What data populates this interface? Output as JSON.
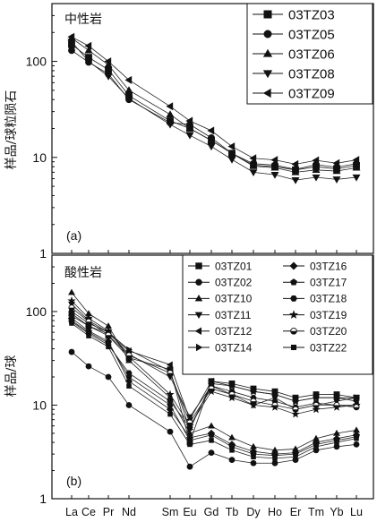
{
  "chart_data": [
    {
      "type": "line",
      "panel_label": "(a)",
      "annotation": "中性岩",
      "ylabel": "样品/球粒陨石",
      "yscale": "log",
      "ylim": [
        1,
        400
      ],
      "y_ticks": [
        "1",
        "10",
        "100"
      ],
      "legend_position": "top-right",
      "categories": [
        "La",
        "Ce",
        "Pr",
        "Nd",
        "Sm",
        "Eu",
        "Gd",
        "Tb",
        "Dy",
        "Ho",
        "Er",
        "Tm",
        "Yb",
        "Lu"
      ],
      "series": [
        {
          "name": "03TZ03",
          "marker": "square",
          "values": [
            150,
            110,
            82,
            44,
            24,
            20,
            15,
            11,
            8.3,
            8.0,
            7.4,
            8.0,
            7.6,
            8.2
          ]
        },
        {
          "name": "03TZ05",
          "marker": "circle",
          "values": [
            130,
            98,
            74,
            40,
            23,
            22,
            16,
            11,
            8.6,
            8.3,
            7.5,
            8.4,
            7.9,
            8.6
          ]
        },
        {
          "name": "03TZ06",
          "marker": "triangle-up",
          "values": [
            175,
            130,
            92,
            50,
            28,
            20,
            15,
            11,
            8.1,
            7.8,
            7.0,
            7.4,
            7.2,
            7.8
          ]
        },
        {
          "name": "03TZ08",
          "marker": "triangle-down",
          "values": [
            160,
            100,
            70,
            41,
            22,
            17,
            13,
            9.5,
            7.0,
            6.6,
            5.8,
            6.2,
            5.9,
            6.2
          ]
        },
        {
          "name": "03TZ09",
          "marker": "triangle-left",
          "values": [
            180,
            145,
            100,
            64,
            34,
            24,
            19,
            13,
            9.8,
            9.4,
            8.5,
            9.3,
            8.7,
            9.4
          ]
        }
      ]
    },
    {
      "type": "line",
      "panel_label": "(b)",
      "annotation": "酸性岩",
      "ylabel": "样品/球",
      "yscale": "log",
      "ylim": [
        1,
        400
      ],
      "y_ticks": [
        "1",
        "10",
        "100"
      ],
      "legend_position": "top-right",
      "categories": [
        "La",
        "Ce",
        "Pr",
        "Nd",
        "Sm",
        "Eu",
        "Gd",
        "Tb",
        "Dy",
        "Ho",
        "Er",
        "Tm",
        "Yb",
        "Lu"
      ],
      "series": [
        {
          "name": "03TZ01",
          "marker": "square",
          "values": [
            95,
            70,
            55,
            32,
            24,
            4.0,
            18,
            17,
            15,
            14,
            12,
            13,
            13,
            12
          ]
        },
        {
          "name": "03TZ02",
          "marker": "circle",
          "values": [
            37,
            26,
            20,
            10,
            5.2,
            2.2,
            3.1,
            2.6,
            2.4,
            2.4,
            2.6,
            3.3,
            3.6,
            3.8
          ]
        },
        {
          "name": "03TZ10",
          "marker": "triangle-up",
          "values": [
            160,
            95,
            70,
            30,
            12,
            5.0,
            6.0,
            4.5,
            3.6,
            3.3,
            3.4,
            4.4,
            5.0,
            5.4
          ]
        },
        {
          "name": "03TZ11",
          "marker": "triangle-down",
          "values": [
            120,
            80,
            60,
            35,
            20,
            7.5,
            16,
            13,
            10,
            12,
            9.0,
            10,
            11,
            12
          ]
        },
        {
          "name": "03TZ12",
          "marker": "triangle-left",
          "values": [
            90,
            70,
            58,
            38,
            27,
            7.0,
            18,
            16,
            14,
            13,
            11,
            12,
            12,
            11
          ]
        },
        {
          "name": "03TZ14",
          "marker": "triangle-right",
          "values": [
            100,
            75,
            60,
            39,
            23,
            5.5,
            17,
            16,
            14,
            13,
            11,
            12,
            12,
            12
          ]
        },
        {
          "name": "03TZ16",
          "marker": "diamond",
          "values": [
            85,
            62,
            48,
            18,
            9.0,
            4.5,
            5.0,
            3.8,
            3.2,
            3.0,
            3.1,
            4.0,
            4.4,
            4.8
          ]
        },
        {
          "name": "03TZ17",
          "marker": "pentagon",
          "values": [
            80,
            60,
            46,
            20,
            10,
            4.2,
            4.8,
            3.6,
            3.0,
            2.9,
            3.0,
            3.8,
            4.2,
            4.6
          ]
        },
        {
          "name": "03TZ18",
          "marker": "hexagon",
          "values": [
            78,
            58,
            44,
            22,
            11,
            5.8,
            16,
            14,
            12,
            11,
            9.5,
            10.5,
            10,
            10
          ]
        },
        {
          "name": "03TZ19",
          "marker": "star",
          "values": [
            130,
            85,
            62,
            33,
            13,
            6.0,
            14,
            12,
            10,
            9.5,
            8.0,
            9.0,
            9.5,
            10
          ]
        },
        {
          "name": "03TZ20",
          "marker": "half-circle",
          "values": [
            110,
            78,
            56,
            34,
            22,
            6.5,
            15,
            13,
            11,
            10,
            9.0,
            10,
            10,
            9.5
          ]
        },
        {
          "name": "03TZ22",
          "marker": "square-small",
          "values": [
            75,
            55,
            42,
            16,
            8.0,
            3.8,
            4.2,
            3.3,
            2.8,
            2.7,
            2.8,
            3.6,
            4.0,
            4.4
          ]
        }
      ]
    }
  ]
}
